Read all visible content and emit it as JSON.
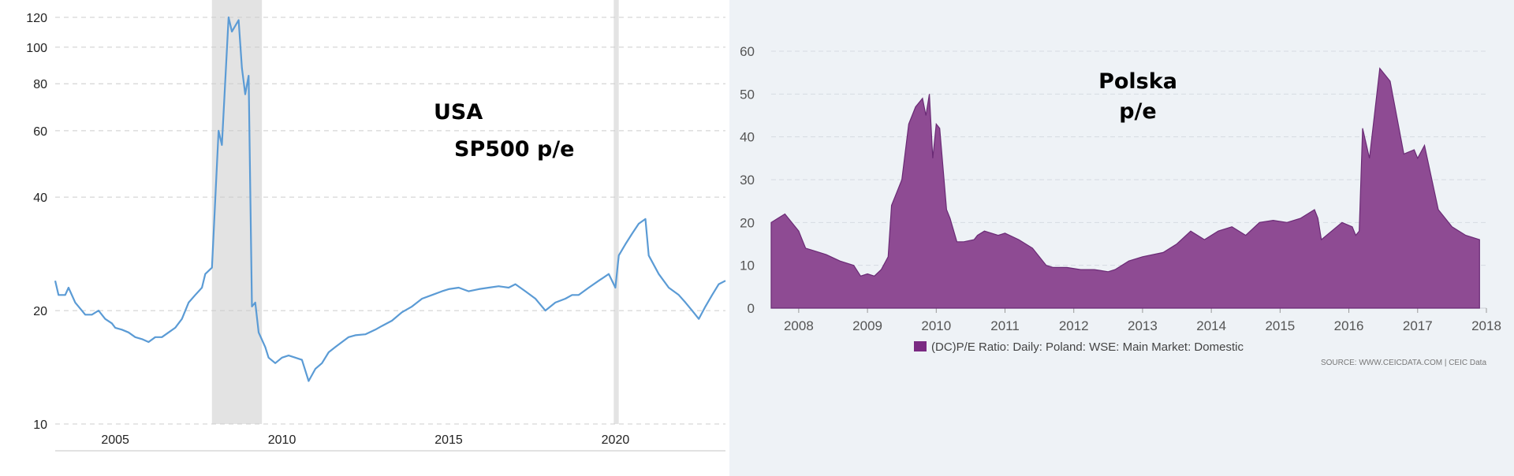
{
  "chart_data": [
    {
      "type": "line",
      "overlay_lines": [
        "USA",
        "SP500 p/e"
      ],
      "y_scale": "log",
      "ylim": [
        10,
        120
      ],
      "y_ticks": [
        10,
        20,
        40,
        60,
        80,
        100,
        120
      ],
      "xlim": [
        2003.2,
        2023.3
      ],
      "x_ticks": [
        2005,
        2010,
        2015,
        2020
      ],
      "grid": true,
      "line_color": "#5b9bd5",
      "recession_color": "#e3e3e3",
      "recessions": [
        [
          2007.9,
          2009.4
        ],
        [
          2019.95,
          2020.1
        ]
      ],
      "series": [
        {
          "x": [
            2003.2,
            2003.3,
            2003.5,
            2003.6,
            2003.8,
            2004.0,
            2004.1,
            2004.3,
            2004.5,
            2004.7,
            2004.9,
            2005.0,
            2005.2,
            2005.4,
            2005.6,
            2005.8,
            2006.0,
            2006.2,
            2006.4,
            2006.6,
            2006.8,
            2007.0,
            2007.2,
            2007.4,
            2007.6,
            2007.7,
            2007.9,
            2008.1,
            2008.2,
            2008.4,
            2008.5,
            2008.7,
            2008.8,
            2008.9,
            2009.0,
            2009.1,
            2009.2,
            2009.3,
            2009.5,
            2009.6,
            2009.8,
            2010.0,
            2010.2,
            2010.4,
            2010.6,
            2010.8,
            2011.0,
            2011.2,
            2011.4,
            2011.6,
            2011.8,
            2012.0,
            2012.2,
            2012.5,
            2012.8,
            2013.0,
            2013.3,
            2013.6,
            2013.9,
            2014.2,
            2014.5,
            2014.8,
            2015.0,
            2015.3,
            2015.6,
            2015.9,
            2016.2,
            2016.5,
            2016.8,
            2017.0,
            2017.3,
            2017.6,
            2017.9,
            2018.2,
            2018.5,
            2018.7,
            2018.9,
            2019.2,
            2019.5,
            2019.8,
            2020.0,
            2020.1,
            2020.3,
            2020.5,
            2020.7,
            2020.9,
            2021.0,
            2021.3,
            2021.6,
            2021.9,
            2022.1,
            2022.3,
            2022.5,
            2022.7,
            2022.9,
            2023.1,
            2023.3
          ],
          "y": [
            24,
            22,
            22,
            23,
            21,
            20,
            19.5,
            19.5,
            20,
            19,
            18.5,
            18,
            17.8,
            17.5,
            17,
            16.8,
            16.5,
            17,
            17,
            17.5,
            18,
            19,
            21,
            22,
            23,
            25,
            26,
            60,
            55,
            120,
            110,
            118,
            88,
            75,
            84,
            20.5,
            21,
            17.5,
            16,
            15,
            14.5,
            15,
            15.2,
            15,
            14.8,
            13,
            14,
            14.5,
            15.5,
            16,
            16.5,
            17,
            17.2,
            17.3,
            17.8,
            18.2,
            18.8,
            19.8,
            20.5,
            21.5,
            22,
            22.5,
            22.8,
            23,
            22.5,
            22.8,
            23,
            23.2,
            23,
            23.5,
            22.5,
            21.5,
            20,
            21,
            21.5,
            22,
            22,
            23,
            24,
            25,
            23,
            28,
            30,
            32,
            34,
            35,
            28,
            25,
            23,
            22,
            21,
            20,
            19,
            20.5,
            22,
            23.5,
            24
          ]
        }
      ]
    },
    {
      "type": "area",
      "overlay_lines": [
        "Polska",
        "p/e"
      ],
      "ylim": [
        0,
        60
      ],
      "y_ticks": [
        0,
        10,
        20,
        30,
        40,
        50,
        60
      ],
      "xlim": [
        2007.6,
        2018.0
      ],
      "x_ticks": [
        2008,
        2009,
        2010,
        2011,
        2012,
        2013,
        2014,
        2015,
        2016,
        2017,
        2018
      ],
      "grid": true,
      "fill_color": "#8e4b93",
      "stroke_color": "#6a2a75",
      "legend": {
        "label": "(DC)P/E Ratio: Daily: Poland: WSE: Main Market: Domestic",
        "placement": "bottom-center"
      },
      "source": "SOURCE: WWW.CEICDATA.COM | CEIC Data",
      "series": [
        {
          "name": "(DC)P/E Ratio: Daily: Poland: WSE: Main Market: Domestic",
          "x": [
            2007.6,
            2007.7,
            2007.8,
            2008.0,
            2008.1,
            2008.2,
            2008.4,
            2008.6,
            2008.8,
            2008.9,
            2009.0,
            2009.1,
            2009.2,
            2009.3,
            2009.35,
            2009.4,
            2009.5,
            2009.6,
            2009.7,
            2009.8,
            2009.85,
            2009.9,
            2009.95,
            2010.0,
            2010.05,
            2010.15,
            2010.2,
            2010.3,
            2010.4,
            2010.55,
            2010.6,
            2010.7,
            2010.9,
            2011.0,
            2011.2,
            2011.4,
            2011.6,
            2011.7,
            2011.9,
            2012.1,
            2012.3,
            2012.5,
            2012.6,
            2012.8,
            2013.0,
            2013.3,
            2013.5,
            2013.7,
            2013.9,
            2014.1,
            2014.3,
            2014.5,
            2014.7,
            2014.9,
            2015.1,
            2015.3,
            2015.5,
            2015.55,
            2015.6,
            2015.9,
            2016.05,
            2016.1,
            2016.15,
            2016.2,
            2016.3,
            2016.45,
            2016.6,
            2016.8,
            2016.95,
            2017.0,
            2017.1,
            2017.3,
            2017.5,
            2017.7,
            2017.9
          ],
          "y": [
            20,
            21,
            22,
            18,
            14,
            13.5,
            12.5,
            11,
            10,
            7.5,
            8,
            7.5,
            9,
            12,
            24,
            26,
            30,
            43,
            47,
            49,
            45,
            50,
            35,
            43,
            42,
            23,
            21,
            15.5,
            15.5,
            16,
            17,
            18,
            17,
            17.5,
            16,
            14,
            10,
            9.5,
            9.5,
            9,
            9,
            8.5,
            9,
            11,
            12,
            13,
            15,
            18,
            16,
            18,
            19,
            17,
            20,
            20.5,
            20,
            21,
            23,
            21,
            16,
            20,
            19,
            17,
            18,
            42,
            35,
            56,
            53,
            36,
            37,
            35,
            38,
            23,
            19,
            17,
            16
          ]
        }
      ]
    }
  ]
}
